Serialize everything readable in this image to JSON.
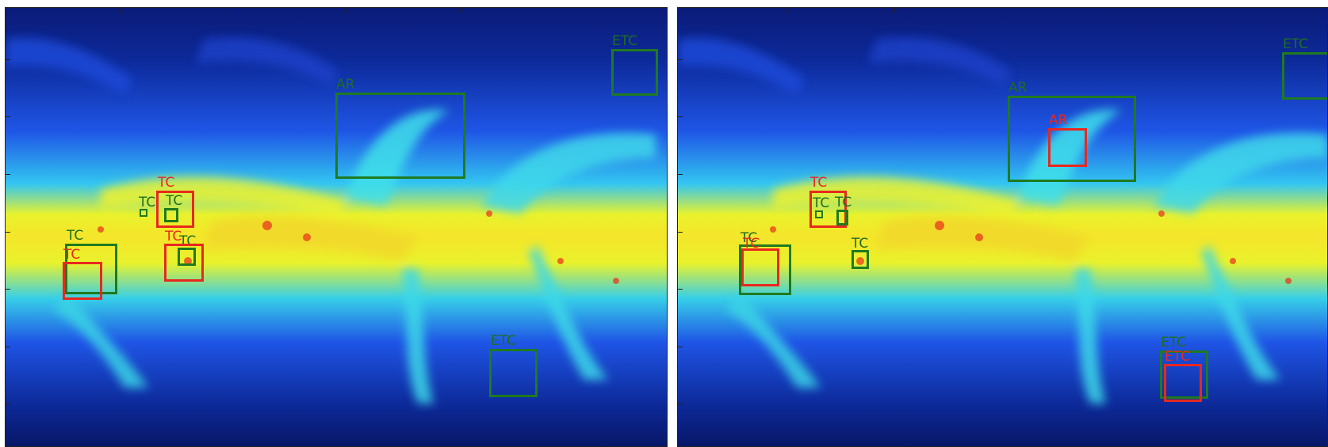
{
  "colormap": {
    "low": "#0a1a6e",
    "mid": "#1f4fe0",
    "cyan": "#38d8e8",
    "yellow": "#f2f226",
    "high": "#e8301a"
  },
  "box_colors": {
    "green": "#1f7a1f",
    "red": "#e8281f"
  },
  "panels": [
    {
      "name": "left",
      "boxes": [
        {
          "color": "green",
          "label": "ETC"
        },
        {
          "color": "green",
          "label": "AR"
        },
        {
          "color": "red",
          "label": "TC"
        },
        {
          "color": "green",
          "label": "TC"
        },
        {
          "color": "green",
          "label": "TC"
        },
        {
          "color": "green",
          "label": "TC"
        },
        {
          "color": "red",
          "label": "TC"
        },
        {
          "color": "green",
          "label": "TC"
        },
        {
          "color": "red",
          "label": "TC"
        },
        {
          "color": "green",
          "label": "ETC"
        }
      ]
    },
    {
      "name": "right",
      "boxes": [
        {
          "color": "green",
          "label": "ETC"
        },
        {
          "color": "green",
          "label": "AR"
        },
        {
          "color": "red",
          "label": "AR"
        },
        {
          "color": "red",
          "label": "TC"
        },
        {
          "color": "green",
          "label": "TC"
        },
        {
          "color": "green",
          "label": "TC"
        },
        {
          "color": "green",
          "label": "TC"
        },
        {
          "color": "red",
          "label": "TC"
        },
        {
          "color": "green",
          "label": "TC"
        },
        {
          "color": "green",
          "label": "ETC"
        },
        {
          "color": "red",
          "label": "ETC"
        }
      ]
    }
  ]
}
